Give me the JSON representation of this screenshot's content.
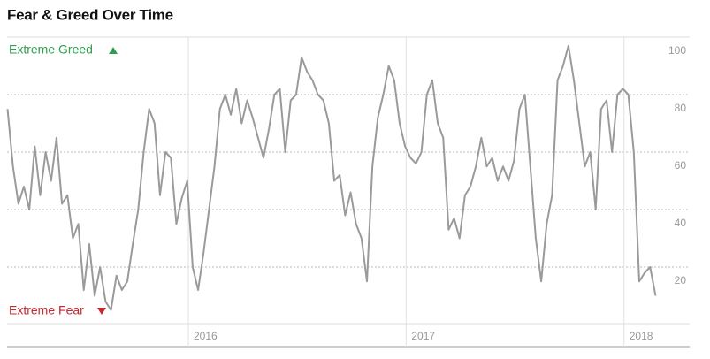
{
  "chart_data": {
    "type": "line",
    "title": "Fear & Greed Over Time",
    "annotations": [
      {
        "text": "Extreme Greed",
        "color": "#2e9e4f"
      },
      {
        "text": "Extreme Fear",
        "color": "#c9252c"
      }
    ],
    "xlim": [
      2015.17,
      2018.2
    ],
    "xticks": [
      2016,
      2017,
      2018
    ],
    "ylim": [
      0,
      100
    ],
    "yticks": [
      20,
      40,
      60,
      80,
      100
    ],
    "grid": true,
    "x": [
      2015.17,
      2015.195,
      2015.22,
      2015.245,
      2015.27,
      2015.295,
      2015.32,
      2015.345,
      2015.37,
      2015.395,
      2015.42,
      2015.445,
      2015.47,
      2015.495,
      2015.52,
      2015.545,
      2015.57,
      2015.595,
      2015.62,
      2015.645,
      2015.67,
      2015.695,
      2015.72,
      2015.745,
      2015.77,
      2015.795,
      2015.82,
      2015.845,
      2015.87,
      2015.895,
      2015.92,
      2015.945,
      2015.97,
      2015.995,
      2016.02,
      2016.045,
      2016.07,
      2016.095,
      2016.12,
      2016.145,
      2016.17,
      2016.195,
      2016.22,
      2016.245,
      2016.27,
      2016.295,
      2016.32,
      2016.345,
      2016.37,
      2016.395,
      2016.42,
      2016.445,
      2016.47,
      2016.495,
      2016.52,
      2016.545,
      2016.57,
      2016.595,
      2016.62,
      2016.645,
      2016.67,
      2016.695,
      2016.72,
      2016.745,
      2016.77,
      2016.795,
      2016.82,
      2016.845,
      2016.87,
      2016.895,
      2016.92,
      2016.945,
      2016.97,
      2016.995,
      2017.02,
      2017.045,
      2017.07,
      2017.095,
      2017.12,
      2017.145,
      2017.17,
      2017.195,
      2017.22,
      2017.245,
      2017.27,
      2017.295,
      2017.32,
      2017.345,
      2017.37,
      2017.395,
      2017.42,
      2017.445,
      2017.47,
      2017.495,
      2017.52,
      2017.545,
      2017.57,
      2017.595,
      2017.62,
      2017.645,
      2017.67,
      2017.695,
      2017.72,
      2017.745,
      2017.77,
      2017.795,
      2017.82,
      2017.845,
      2017.87,
      2017.895,
      2017.92,
      2017.945,
      2017.97,
      2017.995,
      2018.02,
      2018.045,
      2018.07,
      2018.095,
      2018.12,
      2018.145
    ],
    "series": [
      {
        "color": "#9a9a9a",
        "values": [
          75,
          55,
          42,
          48,
          40,
          62,
          45,
          60,
          50,
          65,
          42,
          45,
          30,
          35,
          12,
          28,
          10,
          20,
          8,
          5,
          17,
          12,
          15,
          28,
          40,
          60,
          75,
          70,
          45,
          60,
          58,
          35,
          44,
          50,
          20,
          12,
          25,
          40,
          55,
          75,
          80,
          73,
          82,
          70,
          78,
          72,
          65,
          58,
          68,
          80,
          82,
          60,
          78,
          80,
          93,
          88,
          85,
          80,
          78,
          70,
          50,
          52,
          38,
          46,
          35,
          30,
          15,
          55,
          72,
          80,
          90,
          85,
          70,
          62,
          58,
          56,
          60,
          80,
          85,
          70,
          65,
          33,
          37,
          30,
          45,
          48,
          55,
          65,
          55,
          58,
          50,
          55,
          50,
          57,
          75,
          80,
          55,
          30,
          15,
          35,
          45,
          85,
          90,
          97,
          85,
          70,
          55,
          60,
          40,
          75,
          78,
          60,
          80,
          82,
          80,
          60,
          15,
          18,
          20,
          10
        ]
      }
    ]
  }
}
